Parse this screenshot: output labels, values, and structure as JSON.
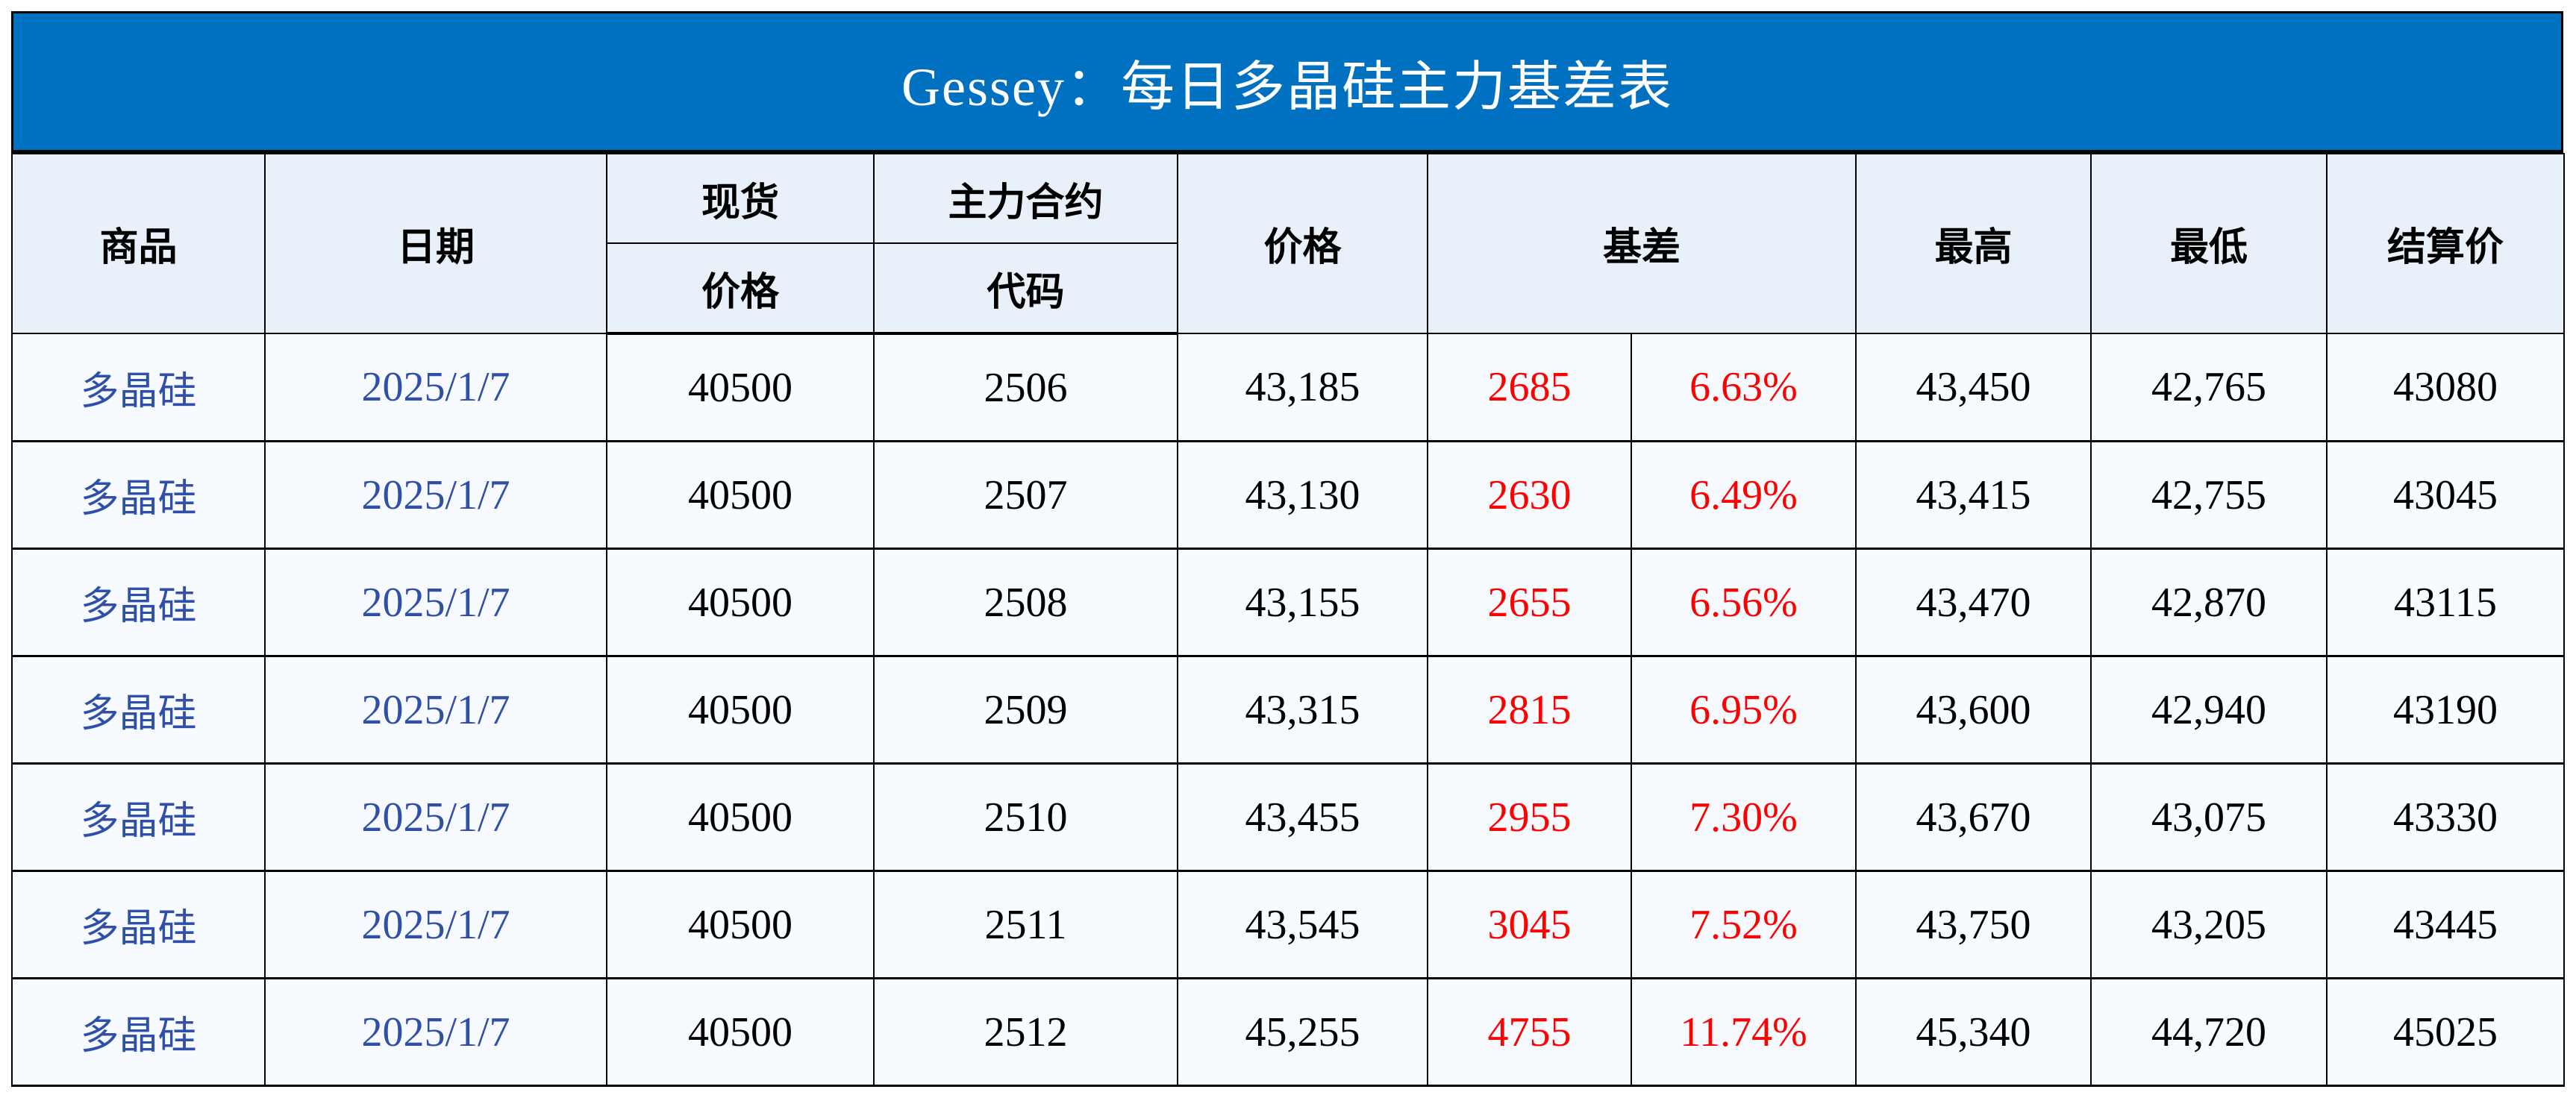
{
  "title": "Gessey：每日多晶硅主力基差表",
  "colors": {
    "title_bg": "#0070C0",
    "header_bg": "#E8F0FA",
    "row_bg": "#F7FBFF",
    "name_text": "#2F4FA8",
    "basis_text": "#FF0000"
  },
  "headers": {
    "product": "商品",
    "date": "日期",
    "spot_top": "现货",
    "spot_bottom": "价格",
    "contract_top": "主力合约",
    "contract_bottom": "代码",
    "price": "价格",
    "basis": "基差",
    "high": "最高",
    "low": "最低",
    "settle": "结算价"
  },
  "rows": [
    {
      "product": "多晶硅",
      "date": "2025/1/7",
      "spot": "40500",
      "code": "2506",
      "price": "43,185",
      "basis": "2685",
      "basis_pct": "6.63%",
      "high": "43,450",
      "low": "42,765",
      "settle": "43080"
    },
    {
      "product": "多晶硅",
      "date": "2025/1/7",
      "spot": "40500",
      "code": "2507",
      "price": "43,130",
      "basis": "2630",
      "basis_pct": "6.49%",
      "high": "43,415",
      "low": "42,755",
      "settle": "43045"
    },
    {
      "product": "多晶硅",
      "date": "2025/1/7",
      "spot": "40500",
      "code": "2508",
      "price": "43,155",
      "basis": "2655",
      "basis_pct": "6.56%",
      "high": "43,470",
      "low": "42,870",
      "settle": "43115"
    },
    {
      "product": "多晶硅",
      "date": "2025/1/7",
      "spot": "40500",
      "code": "2509",
      "price": "43,315",
      "basis": "2815",
      "basis_pct": "6.95%",
      "high": "43,600",
      "low": "42,940",
      "settle": "43190"
    },
    {
      "product": "多晶硅",
      "date": "2025/1/7",
      "spot": "40500",
      "code": "2510",
      "price": "43,455",
      "basis": "2955",
      "basis_pct": "7.30%",
      "high": "43,670",
      "low": "43,075",
      "settle": "43330"
    },
    {
      "product": "多晶硅",
      "date": "2025/1/7",
      "spot": "40500",
      "code": "2511",
      "price": "43,545",
      "basis": "3045",
      "basis_pct": "7.52%",
      "high": "43,750",
      "low": "43,205",
      "settle": "43445"
    },
    {
      "product": "多晶硅",
      "date": "2025/1/7",
      "spot": "40500",
      "code": "2512",
      "price": "45,255",
      "basis": "4755",
      "basis_pct": "11.74%",
      "high": "45,340",
      "low": "44,720",
      "settle": "45025"
    }
  ]
}
